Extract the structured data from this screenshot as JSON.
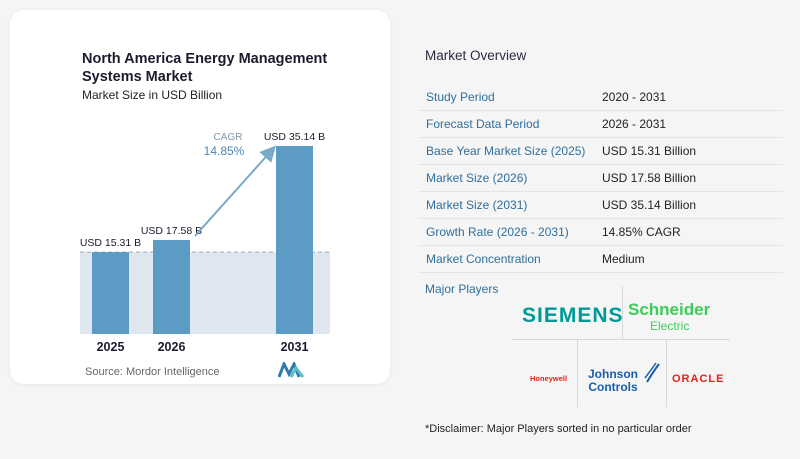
{
  "left": {
    "title": "North America Energy Management Systems Market",
    "subtitle": "Market Size in USD Billion",
    "source": "Source:  Mordor Intelligence"
  },
  "chart_data": {
    "type": "bar",
    "categories": [
      "2025",
      "2026",
      "2031"
    ],
    "values": [
      15.31,
      17.58,
      35.14
    ],
    "value_labels": [
      "USD 15.31 B",
      "USD 17.58 B",
      "USD 35.14 B"
    ],
    "cagr_label": "CAGR",
    "cagr_value": "14.85%",
    "ylim": [
      0,
      40
    ],
    "grid": false,
    "bar_color": "#5b9bc4",
    "baseline_band_color": "#dfe8f0"
  },
  "overview": {
    "title": "Market Overview",
    "rows": [
      {
        "label": "Study Period",
        "value": "2020 - 2031"
      },
      {
        "label": "Forecast Data Period",
        "value": "2026 - 2031"
      },
      {
        "label": "Base Year Market Size (2025)",
        "value": "USD 15.31 Billion"
      },
      {
        "label": "Market Size (2026)",
        "value": "USD 17.58 Billion"
      },
      {
        "label": "Market Size (2031)",
        "value": "USD 35.14 Billion"
      },
      {
        "label": "Growth Rate (2026 - 2031)",
        "value": "14.85% CAGR"
      },
      {
        "label": "Market Concentration",
        "value": "Medium"
      }
    ],
    "players_label": "Major Players",
    "players": {
      "siemens": "SIEMENS",
      "schneider": "Schneider",
      "schneider_sub": "Electric",
      "honeywell": "Honeywell",
      "johnson_line1": "Johnson",
      "johnson_line2": "Controls",
      "oracle": "ORACLE"
    },
    "disclaimer": "*Disclaimer: Major Players sorted in no particular order"
  }
}
